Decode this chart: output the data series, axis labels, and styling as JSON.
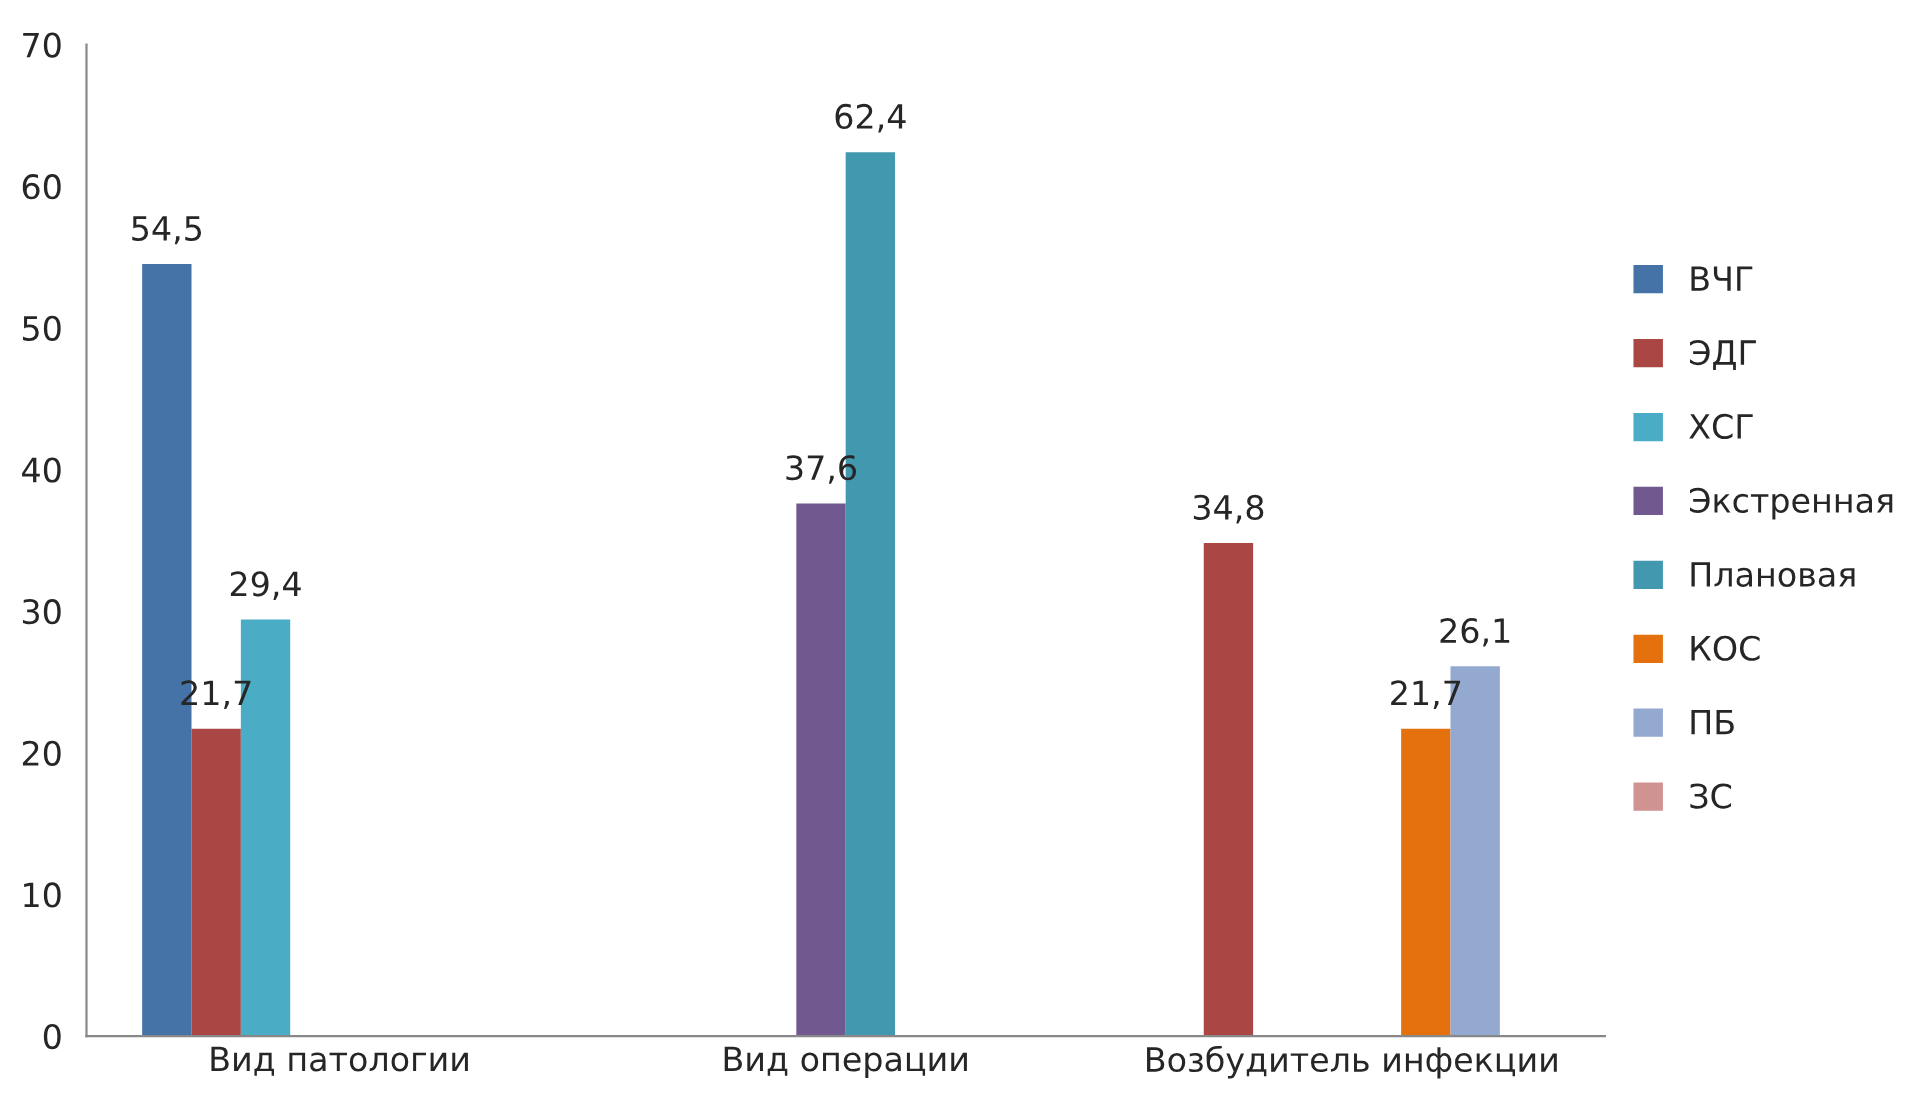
{
  "chart_data": {
    "type": "bar",
    "categories": [
      "Вид патологии",
      "Вид операции",
      "Возбудитель инфекции"
    ],
    "series": [
      {
        "name": "ВЧГ",
        "color": "#4572a7",
        "values": [
          54.5,
          null,
          null
        ],
        "value_labels": [
          "54,5",
          null,
          null
        ]
      },
      {
        "name": "ЭДГ",
        "color": "#aa4643",
        "values": [
          21.7,
          null,
          34.8
        ],
        "value_labels": [
          "21,7",
          null,
          "34,8"
        ]
      },
      {
        "name": "ХСГ",
        "color": "#4bacc6",
        "values": [
          29.4,
          null,
          null
        ],
        "value_labels": [
          "29,4",
          null,
          null
        ]
      },
      {
        "name": "Экстренная",
        "color": "#71588f",
        "values": [
          null,
          37.6,
          null
        ],
        "value_labels": [
          null,
          "37,6",
          null
        ]
      },
      {
        "name": "Плановая",
        "color": "#4198af",
        "values": [
          null,
          62.4,
          null
        ],
        "value_labels": [
          null,
          "62,4",
          null
        ]
      },
      {
        "name": "КОС",
        "color": "#e4700e",
        "values": [
          null,
          null,
          21.7
        ],
        "value_labels": [
          null,
          null,
          "21,7"
        ]
      },
      {
        "name": "ПБ",
        "color": "#93a9cf",
        "values": [
          null,
          null,
          26.1
        ],
        "value_labels": [
          null,
          null,
          "26,1"
        ]
      },
      {
        "name": "ЗС",
        "color": "#d19392",
        "values": [
          null,
          null,
          null
        ]
      }
    ],
    "ylim": [
      0,
      70
    ],
    "yticks": [
      0,
      10,
      20,
      30,
      40,
      50,
      60,
      70
    ],
    "grid": false,
    "legend": "right"
  }
}
